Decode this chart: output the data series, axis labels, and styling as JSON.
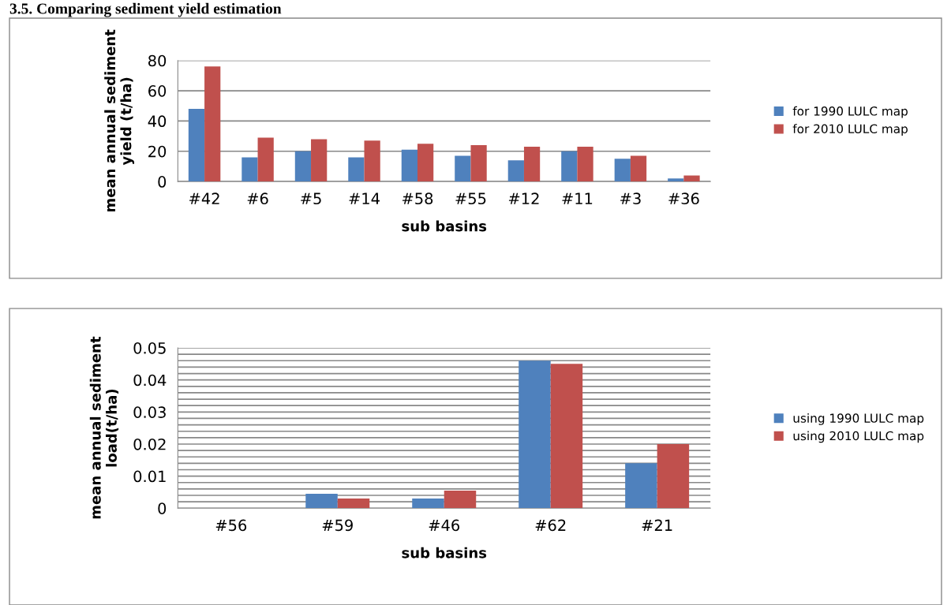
{
  "chart_data": [
    {
      "type": "bar",
      "title": "3.5. Comparing sediment yield estimation",
      "xlabel": "sub basins",
      "ylabel": "mean annual sediment\nyield (t/ha)",
      "categories": [
        "#42",
        "#6",
        "#5",
        "#14",
        "#58",
        "#55",
        "#12",
        "#11",
        "#3",
        "#36"
      ],
      "series": [
        {
          "name": "for 1990 LULC map",
          "color": "#4f81bd",
          "values": [
            48,
            16,
            20,
            16,
            21,
            17,
            14,
            20,
            15,
            2
          ]
        },
        {
          "name": "for 2010 LULC map",
          "color": "#c0504d",
          "values": [
            76,
            29,
            28,
            27,
            25,
            24,
            23,
            23,
            17,
            4
          ]
        }
      ],
      "ylim": [
        0,
        80
      ],
      "yticks": [
        0,
        20,
        40,
        60,
        80
      ],
      "grid": "y",
      "legend": "right"
    },
    {
      "type": "bar",
      "xlabel": "sub basins",
      "ylabel": "mean annual sediment\nload(t/ha)",
      "categories": [
        "#56",
        "#59",
        "#46",
        "#62",
        "#21"
      ],
      "series": [
        {
          "name": "using 1990 LULC map",
          "color": "#4f81bd",
          "values": [
            0,
            0.0045,
            0.003,
            0.046,
            0.014
          ]
        },
        {
          "name": "using 2010 LULC map",
          "color": "#c0504d",
          "values": [
            0,
            0.003,
            0.0055,
            0.045,
            0.02
          ]
        }
      ],
      "ylim": [
        0,
        0.05
      ],
      "yticks": [
        0,
        {
          "value": 0.002,
          "label": null
        },
        {
          "value": 0.004,
          "label": null
        },
        {
          "value": 0.006,
          "label": null
        },
        {
          "value": 0.008,
          "label": null
        },
        0.01,
        {
          "value": 0.012,
          "label": null
        },
        {
          "value": 0.014,
          "label": null
        },
        {
          "value": 0.016,
          "label": null
        },
        {
          "value": 0.018,
          "label": null
        },
        0.02,
        {
          "value": 0.022,
          "label": null
        },
        {
          "value": 0.024,
          "label": null
        },
        {
          "value": 0.026,
          "label": null
        },
        {
          "value": 0.028,
          "label": null
        },
        0.03,
        {
          "value": 0.032,
          "label": null
        },
        {
          "value": 0.034,
          "label": null
        },
        {
          "value": 0.036,
          "label": null
        },
        {
          "value": 0.038,
          "label": null
        },
        0.04,
        {
          "value": 0.042,
          "label": null
        },
        {
          "value": 0.044,
          "label": null
        },
        {
          "value": 0.046,
          "label": null
        },
        {
          "value": 0.048,
          "label": null
        },
        0.05
      ],
      "grid": "y",
      "legend": "right"
    }
  ]
}
